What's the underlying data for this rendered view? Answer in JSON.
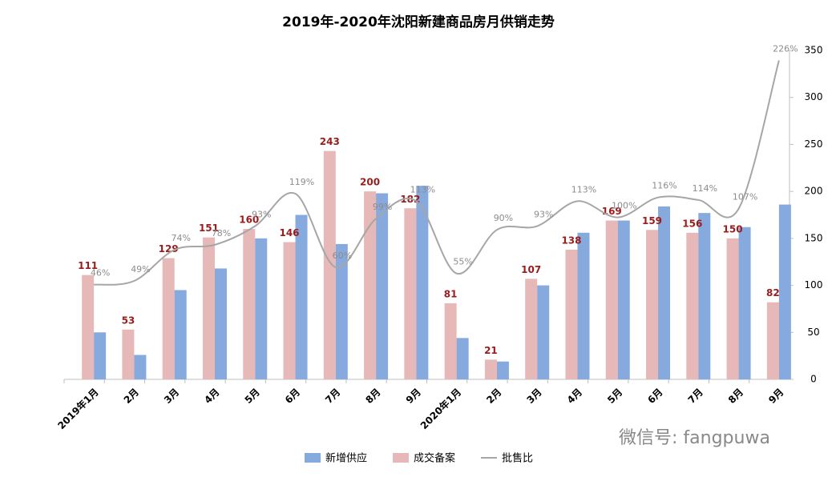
{
  "chart_data": {
    "type": "bar",
    "title": "2019年-2020年沈阳新建商品房月供销走势",
    "categories": [
      "2019年1月",
      "2月",
      "3月",
      "4月",
      "5月",
      "6月",
      "7月",
      "8月",
      "9月",
      "2020年1月",
      "2月",
      "3月",
      "4月",
      "5月",
      "6月",
      "7月",
      "8月",
      "9月"
    ],
    "series": [
      {
        "name": "新增供应",
        "color": "#86aade",
        "values": [
          50,
          26,
          95,
          118,
          150,
          175,
          144,
          198,
          206,
          44,
          19,
          100,
          156,
          169,
          184,
          177,
          162,
          186
        ]
      },
      {
        "name": "成交备案",
        "color": "#e6b8b7",
        "values": [
          111,
          53,
          129,
          151,
          160,
          146,
          243,
          200,
          182,
          81,
          21,
          107,
          138,
          169,
          159,
          156,
          150,
          82
        ]
      },
      {
        "name": "批售比",
        "type": "line",
        "axis": "y2",
        "color": "#a6a6a6",
        "values": [
          46,
          49,
          74,
          78,
          93,
          119,
          60,
          99,
          113,
          55,
          90,
          93,
          113,
          100,
          116,
          114,
          107,
          226
        ],
        "value_labels": [
          "46%",
          "49%",
          "74%",
          "78%",
          "93%",
          "119%",
          "60%",
          "99%",
          "113%",
          "55%",
          "90%",
          "93%",
          "113%",
          "100%",
          "116%",
          "114%",
          "107%",
          "226%"
        ]
      }
    ],
    "ylim": [
      0,
      350
    ],
    "yticks": [
      0,
      50,
      100,
      150,
      200,
      250,
      300,
      350
    ],
    "y2lim": [
      -30,
      234
    ],
    "legend": "bottom",
    "watermark": "微信号: fangpuwa"
  }
}
